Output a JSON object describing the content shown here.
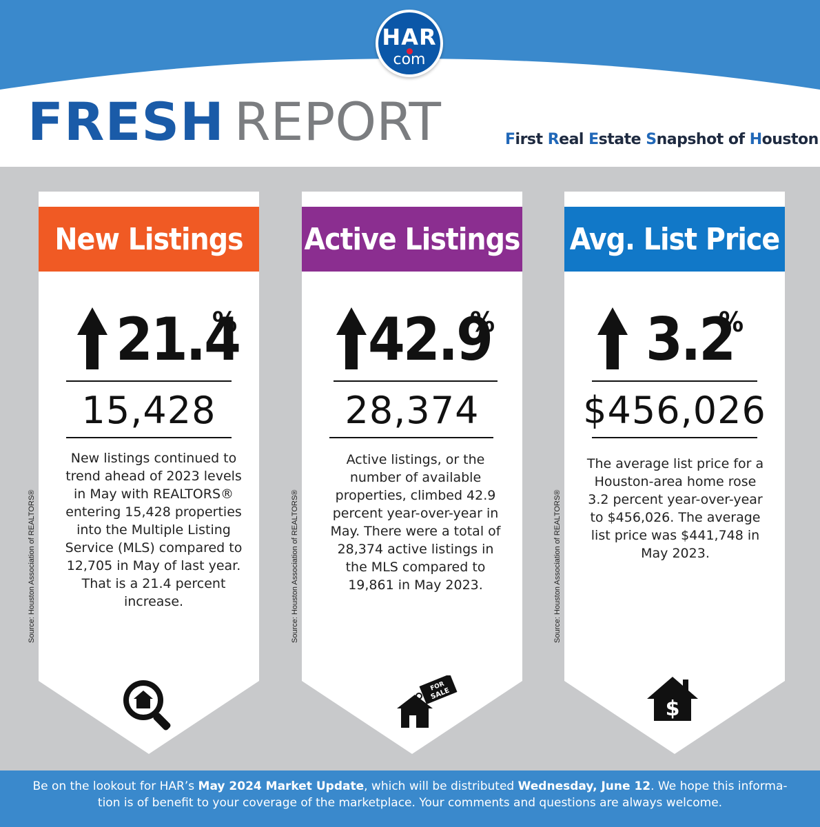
{
  "logo": {
    "top": "HAR",
    "bottom": "com"
  },
  "title": {
    "fresh": "FRESH",
    "report": "REPORT"
  },
  "subtitle": [
    {
      "initial": "F",
      "rest": "irst "
    },
    {
      "initial": "R",
      "rest": "eal "
    },
    {
      "initial": "E",
      "rest": "state "
    },
    {
      "initial": "S",
      "rest": "napshot of "
    },
    {
      "initial": "H",
      "rest": "ouston"
    }
  ],
  "colors": {
    "header_blue": "#3a89cc",
    "new_listings": "#f05a24",
    "active_listings": "#8b2e90",
    "avg_list_price": "#1178c8",
    "fresh": "#1a5ba8",
    "report": "#7b7d80"
  },
  "cards": [
    {
      "header": "New Listings",
      "percent": "21.4",
      "percent_sign": "%",
      "count": "15,428",
      "description": "New listings continued to trend ahead of 2023 levels in May with REALTORS® entering 15,428 properties into the Multiple Listing Service (MLS) compared to 12,705 in May of last year. That is a 21.4 percent increase.",
      "source": "Source: Houston Association of REALTORS®",
      "icon": "magnifier-house-icon",
      "icon_text": ""
    },
    {
      "header": "Active Listings",
      "percent": "42.9",
      "percent_sign": "%",
      "count": "28,374",
      "description": "Active listings, or the number of available properties, climbed 42.9 percent year-over-year in May. There were a total of 28,374 active listings in the MLS compared to 19,861 in May 2023.",
      "source": "Source: Houston Association of REALTORS®",
      "icon": "house-for-sale-tag-icon",
      "icon_text": [
        "FOR",
        "SALE"
      ]
    },
    {
      "header": "Avg. List Price",
      "percent": "3.2",
      "percent_sign": "%",
      "count": "$456,026",
      "description": "The average list price for a Houston-area home rose 3.2 percent year-over-year to $456,026. The average list price was $441,748 in May 2023.",
      "source": "Source: Houston Association of REALTORS®",
      "icon": "house-dollar-icon",
      "icon_text": "$"
    }
  ],
  "footer": {
    "part1": "Be on the lookout for HAR’s ",
    "bold1": "May 2024 Market Update",
    "part2": ", which will be distributed ",
    "bold2": "Wednesday, June 12",
    "part3": ". We hope this informa-",
    "line2": "tion is of benefit to your coverage of the marketplace. Your comments and questions are always welcome."
  }
}
